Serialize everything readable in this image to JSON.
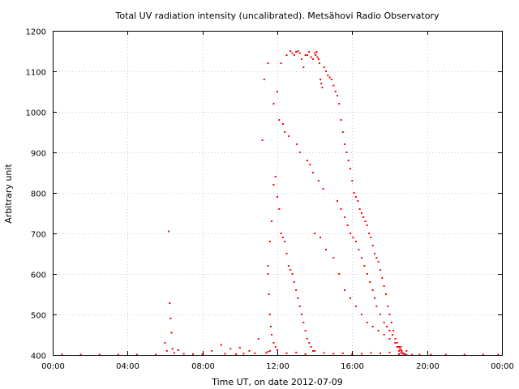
{
  "chart_data": {
    "type": "scatter",
    "title": "Total UV radiation intensity (uncalibrated). Metsähovi Radio Observatory",
    "xlabel": "Time UT, on date 2012-07-09",
    "ylabel": "Arbitrary unit",
    "x_unit": "hours",
    "xlim": [
      0,
      24
    ],
    "ylim": [
      400,
      1200
    ],
    "x_ticks": [
      {
        "value": 0,
        "label": "00:00"
      },
      {
        "value": 4,
        "label": "04:00"
      },
      {
        "value": 8,
        "label": "08:00"
      },
      {
        "value": 12,
        "label": "12:00"
      },
      {
        "value": 16,
        "label": "16:00"
      },
      {
        "value": 20,
        "label": "20:00"
      },
      {
        "value": 24,
        "label": "00:00"
      }
    ],
    "y_ticks": [
      {
        "value": 400,
        "label": "400"
      },
      {
        "value": 500,
        "label": "500"
      },
      {
        "value": 600,
        "label": "600"
      },
      {
        "value": 700,
        "label": "700"
      },
      {
        "value": 800,
        "label": "800"
      },
      {
        "value": 900,
        "label": "900"
      },
      {
        "value": 1000,
        "label": "1000"
      },
      {
        "value": 1100,
        "label": "1100"
      },
      {
        "value": 1200,
        "label": "1200"
      }
    ],
    "grid": true,
    "legend": "none",
    "series": [
      {
        "color": "#ff0000",
        "x": [
          6.0,
          6.1,
          6.2,
          6.25,
          6.3,
          6.35,
          6.4,
          6.5,
          6.7,
          7.0,
          8.5,
          9.0,
          9.5,
          10.0,
          10.5,
          11.0,
          11.2,
          11.3,
          11.5,
          11.8,
          12.0,
          12.2,
          12.5,
          12.7,
          12.8,
          12.9,
          13.0,
          13.1,
          13.2,
          13.3,
          13.4,
          13.5,
          13.6,
          13.7,
          13.8,
          13.9,
          14.0,
          14.05,
          14.1,
          14.15,
          14.2,
          14.25,
          14.3,
          14.35,
          14.4,
          14.5,
          14.6,
          14.7,
          14.8,
          14.9,
          15.0,
          15.1,
          15.2,
          15.3,
          15.4,
          15.5,
          15.6,
          15.7,
          15.8,
          15.9,
          16.0,
          16.1,
          16.2,
          16.3,
          16.4,
          16.5,
          16.6,
          16.7,
          16.8,
          16.9,
          17.0,
          17.1,
          17.2,
          17.3,
          17.4,
          17.5,
          17.6,
          17.7,
          17.8,
          17.9,
          18.0,
          18.1,
          18.2,
          18.3,
          18.4,
          18.5,
          18.6,
          18.7,
          18.8,
          18.9,
          11.5,
          11.55,
          11.6,
          11.65,
          11.7,
          11.8,
          11.9,
          12.1,
          12.3,
          12.4,
          12.6,
          13.05,
          13.2,
          13.6,
          13.75,
          13.9,
          14.2,
          14.45,
          15.2,
          15.4,
          15.6,
          15.75,
          15.9,
          16.05,
          16.2,
          16.35,
          16.5,
          16.65,
          16.8,
          16.95,
          17.1,
          17.2,
          17.3,
          17.5,
          17.7,
          17.85,
          18.0,
          18.15,
          18.3,
          18.4,
          18.45,
          18.5,
          18.55,
          18.6,
          18.65,
          18.7,
          18.75,
          18.8,
          11.5,
          11.6,
          11.7,
          11.8,
          11.9,
          12.0,
          12.1,
          12.2,
          12.3,
          12.4,
          12.5,
          12.6,
          12.7,
          12.8,
          12.9,
          13.0,
          13.1,
          13.2,
          13.3,
          13.4,
          13.5,
          13.6,
          13.7,
          13.8,
          13.9,
          14.0,
          14.3,
          14.6,
          15.0,
          15.3,
          15.6,
          15.9,
          16.2,
          16.5,
          16.8,
          17.1,
          17.4,
          17.7,
          18.0,
          18.3,
          18.6,
          18.9,
          11.4,
          11.5,
          11.6,
          12.0,
          12.5,
          13.0,
          13.5,
          14.0,
          14.5,
          15.0,
          15.5,
          16.0,
          16.5,
          17.0,
          17.5,
          18.0,
          18.5,
          0.5,
          1.5,
          2.5,
          3.5,
          4.5,
          5.5,
          7.5,
          8.0,
          9.2,
          9.8,
          10.2,
          10.8,
          19.2,
          19.6,
          20.2,
          21.0,
          22.0,
          23.0,
          23.8
        ],
        "y": [
          430,
          410,
          705,
          528,
          490,
          455,
          415,
          405,
          412,
          403,
          410,
          425,
          415,
          418,
          410,
          440,
          930,
          1080,
          1120,
          1020,
          1050,
          1120,
          1140,
          1150,
          1145,
          1140,
          1148,
          1150,
          1145,
          1130,
          1110,
          1140,
          1140,
          1148,
          1135,
          1130,
          1145,
          1140,
          1148,
          1135,
          1130,
          1120,
          1080,
          1070,
          1060,
          1110,
          1100,
          1090,
          1085,
          1080,
          1065,
          1050,
          1040,
          1020,
          980,
          950,
          920,
          900,
          880,
          860,
          830,
          800,
          790,
          780,
          760,
          750,
          740,
          730,
          720,
          700,
          690,
          670,
          650,
          640,
          630,
          610,
          590,
          570,
          550,
          520,
          500,
          480,
          460,
          440,
          420,
          410,
          405,
          403,
          402,
          401,
          600,
          550,
          500,
          470,
          450,
          430,
          420,
          980,
          970,
          950,
          940,
          920,
          900,
          880,
          870,
          850,
          830,
          810,
          780,
          760,
          740,
          720,
          700,
          690,
          680,
          660,
          640,
          620,
          600,
          580,
          560,
          540,
          520,
          500,
          480,
          470,
          460,
          450,
          440,
          430,
          420,
          420,
          415,
          412,
          410,
          405,
          403,
          402,
          620,
          680,
          730,
          820,
          840,
          790,
          760,
          700,
          690,
          680,
          650,
          620,
          610,
          600,
          580,
          560,
          540,
          520,
          500,
          480,
          460,
          440,
          430,
          420,
          410,
          700,
          690,
          660,
          640,
          600,
          560,
          540,
          520,
          500,
          480,
          470,
          460,
          450,
          440,
          430,
          420,
          410,
          405,
          408,
          410,
          412,
          404,
          406,
          402,
          410,
          405,
          403,
          404,
          402,
          403,
          405,
          404,
          406,
          402,
          401,
          401,
          401,
          401,
          401,
          401,
          402,
          402,
          403,
          402,
          403,
          404,
          401,
          401,
          401,
          401,
          401,
          401,
          401
        ]
      }
    ]
  }
}
